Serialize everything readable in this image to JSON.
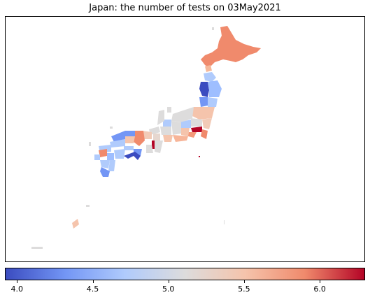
{
  "title": "Japan: the number of tests on 03May2021",
  "colormap": {
    "name": "coolwarm",
    "stops": [
      "#3b4cc0",
      "#7396f5",
      "#b0cbfc",
      "#dddcdc",
      "#f5c4ac",
      "#f08a6c",
      "#b40426"
    ],
    "min": 3.92,
    "max": 6.3
  },
  "colorbar_ticks": [
    "4.0",
    "4.5",
    "5.0",
    "5.5",
    "6.0"
  ]
}
